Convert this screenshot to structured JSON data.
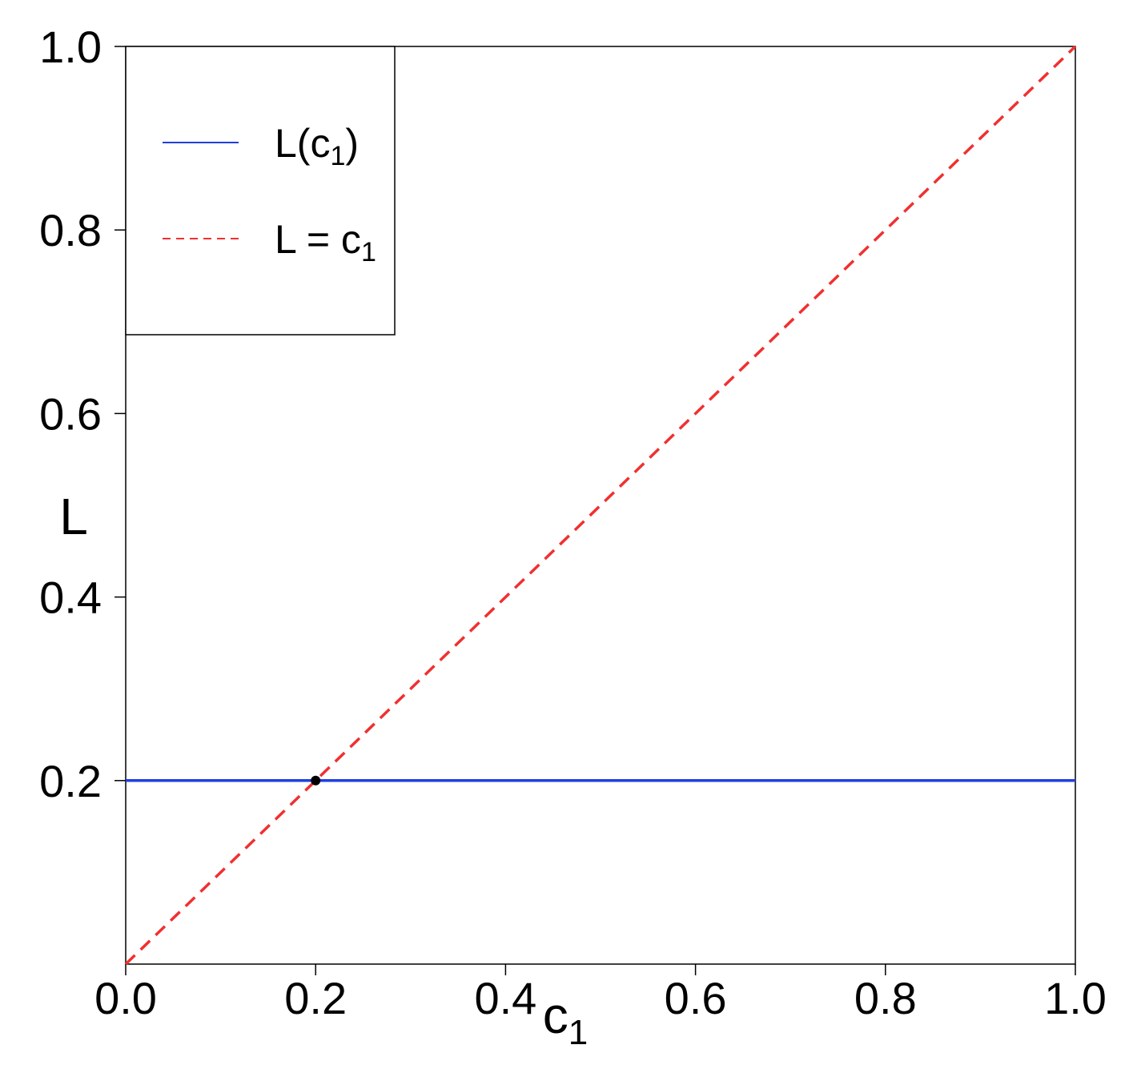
{
  "chart_data": {
    "type": "line",
    "xlabel": "c",
    "xlabel_sub": "1",
    "ylabel": "L",
    "xlim": [
      0.0,
      1.0
    ],
    "ylim": [
      0.0,
      1.0
    ],
    "xticks": [
      "0.0",
      "0.2",
      "0.4",
      "0.6",
      "0.8",
      "1.0"
    ],
    "yticks": [
      "0.2",
      "0.4",
      "0.6",
      "0.8",
      "1.0"
    ],
    "grid": false,
    "legend_position": "top-left",
    "series": [
      {
        "name": "L(c1)",
        "legend_base": "L(c",
        "legend_sub": "1",
        "legend_tail": ")",
        "style": "solid",
        "color": "#1f3fe0",
        "x": [
          0.0,
          1.0
        ],
        "y": [
          0.2,
          0.2
        ]
      },
      {
        "name": "L = c1",
        "legend_base": "L = c",
        "legend_sub": "1",
        "legend_tail": "",
        "style": "dashed",
        "color": "#f03030",
        "x": [
          0.0,
          1.0
        ],
        "y": [
          0.0,
          1.0
        ]
      }
    ],
    "points": [
      {
        "x": 0.2,
        "y": 0.2,
        "color": "#000000"
      }
    ]
  }
}
